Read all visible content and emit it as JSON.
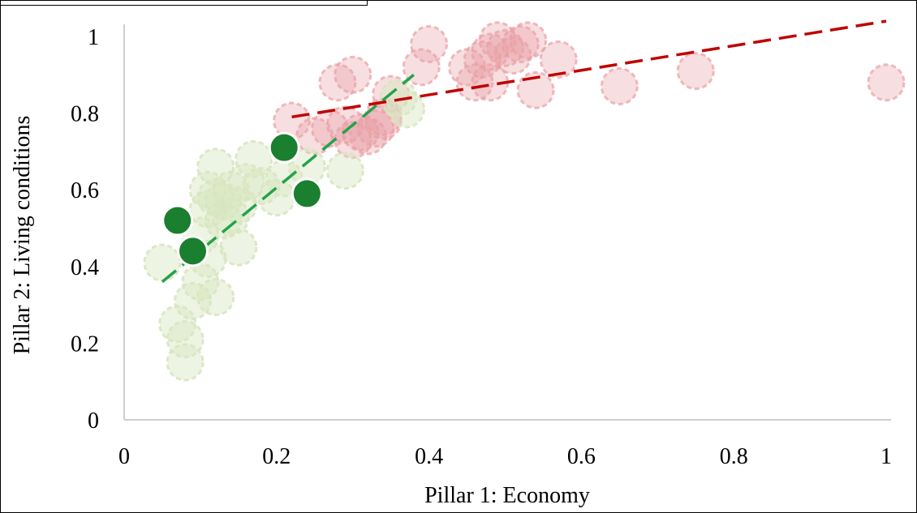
{
  "chart_data": {
    "type": "scatter",
    "xlabel": "Pillar 1: Economy",
    "ylabel": "Pillar 2: Living conditions",
    "xlim": [
      0,
      1
    ],
    "ylim": [
      0,
      1.05
    ],
    "xticks": [
      "0",
      "0.2",
      "0.4",
      "0.6",
      "0.8",
      "1"
    ],
    "yticks": [
      "0",
      "0.2",
      "0.4",
      "0.6",
      "0.8",
      "1"
    ],
    "grid": false,
    "colors": {
      "red": "#c0392b",
      "red_fill": "#e8a0a5",
      "light_green": "#d8e6c0",
      "dark_green": "#1a7f2e",
      "green_line": "#22a34a",
      "red_line": "#c00000"
    },
    "series": [
      {
        "style": "red-translucent",
        "points": [
          [
            0.22,
            0.78
          ],
          [
            0.25,
            0.74
          ],
          [
            0.27,
            0.76
          ],
          [
            0.29,
            0.77
          ],
          [
            0.3,
            0.73
          ],
          [
            0.31,
            0.75
          ],
          [
            0.32,
            0.74
          ],
          [
            0.33,
            0.76
          ],
          [
            0.34,
            0.78
          ],
          [
            0.35,
            0.85
          ],
          [
            0.28,
            0.88
          ],
          [
            0.3,
            0.9
          ],
          [
            0.39,
            0.92
          ],
          [
            0.4,
            0.98
          ],
          [
            0.45,
            0.92
          ],
          [
            0.46,
            0.88
          ],
          [
            0.47,
            0.94
          ],
          [
            0.48,
            0.96
          ],
          [
            0.49,
            0.99
          ],
          [
            0.5,
            0.97
          ],
          [
            0.51,
            0.95
          ],
          [
            0.52,
            0.98
          ],
          [
            0.53,
            0.99
          ],
          [
            0.48,
            0.88
          ],
          [
            0.54,
            0.86
          ],
          [
            0.57,
            0.94
          ],
          [
            0.65,
            0.87
          ],
          [
            0.75,
            0.91
          ],
          [
            1.0,
            0.88
          ],
          [
            0.34,
            0.79
          ]
        ]
      },
      {
        "style": "light-green-translucent",
        "points": [
          [
            0.05,
            0.41
          ],
          [
            0.07,
            0.25
          ],
          [
            0.08,
            0.21
          ],
          [
            0.08,
            0.15
          ],
          [
            0.09,
            0.31
          ],
          [
            0.1,
            0.48
          ],
          [
            0.11,
            0.55
          ],
          [
            0.11,
            0.6
          ],
          [
            0.12,
            0.58
          ],
          [
            0.12,
            0.66
          ],
          [
            0.13,
            0.52
          ],
          [
            0.13,
            0.57
          ],
          [
            0.14,
            0.53
          ],
          [
            0.14,
            0.6
          ],
          [
            0.15,
            0.56
          ],
          [
            0.16,
            0.62
          ],
          [
            0.17,
            0.68
          ],
          [
            0.18,
            0.61
          ],
          [
            0.2,
            0.58
          ],
          [
            0.21,
            0.63
          ],
          [
            0.12,
            0.32
          ],
          [
            0.11,
            0.42
          ],
          [
            0.15,
            0.45
          ],
          [
            0.24,
            0.66
          ],
          [
            0.29,
            0.65
          ],
          [
            0.37,
            0.81
          ],
          [
            0.36,
            0.84
          ],
          [
            0.1,
            0.36
          ]
        ]
      },
      {
        "style": "dark-green-solid",
        "points": [
          [
            0.07,
            0.52
          ],
          [
            0.09,
            0.44
          ],
          [
            0.21,
            0.71
          ],
          [
            0.24,
            0.59
          ]
        ]
      }
    ],
    "trendlines": [
      {
        "style": "green-dashed",
        "from": [
          0.05,
          0.36
        ],
        "to": [
          0.38,
          0.9
        ]
      },
      {
        "style": "red-dashed",
        "from": [
          0.22,
          0.79
        ],
        "to": [
          1.0,
          1.04
        ]
      }
    ]
  }
}
